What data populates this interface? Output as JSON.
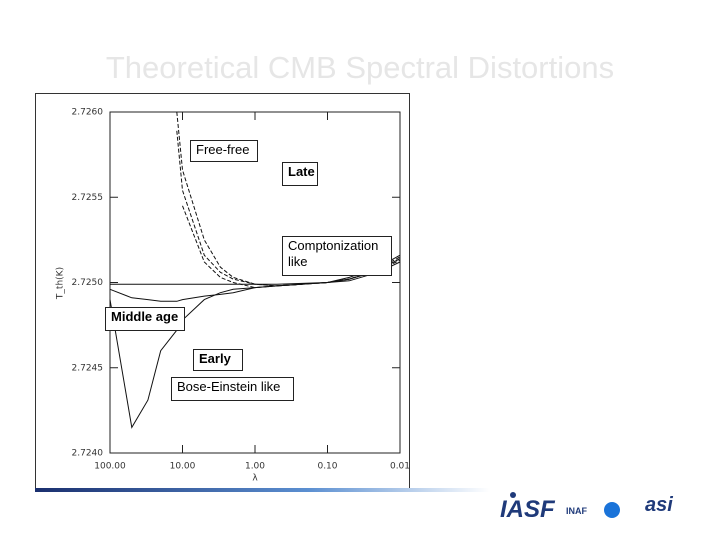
{
  "chart_data": {
    "type": "line",
    "title": "Theoretical CMB Spectral Distortions",
    "x_label": "λ",
    "y_label": "T_th(K)",
    "x_log": true,
    "xlim": [
      100,
      0.01
    ],
    "xticks": [
      {
        "value": 100,
        "label": "100.00"
      },
      {
        "value": 10,
        "label": "10.00"
      },
      {
        "value": 1,
        "label": "1.00"
      },
      {
        "value": 0.1,
        "label": "0.10"
      },
      {
        "value": 0.01,
        "label": "0.01"
      }
    ],
    "ylim": [
      2.724,
      2.726
    ],
    "yticks": [
      {
        "value": 2.724,
        "label": "2.7240"
      },
      {
        "value": 2.7245,
        "label": "2.7245"
      },
      {
        "value": 2.725,
        "label": "2.7250"
      },
      {
        "value": 2.7255,
        "label": "2.7255"
      },
      {
        "value": 2.726,
        "label": "2.7260"
      }
    ],
    "x": [
      100,
      50,
      30,
      20,
      12,
      10,
      5,
      3,
      2,
      1,
      0.5,
      0.1,
      0.05,
      0.02,
      0.01
    ],
    "series": [
      {
        "color": "#111111",
        "dash": false,
        "values": [
          2.7249,
          2.72415,
          2.72431,
          2.7246,
          2.72472,
          2.72478,
          2.7249,
          2.72494,
          2.72496,
          2.72497,
          2.72498,
          2.725,
          2.72502,
          2.72507,
          2.72514
        ]
      },
      {
        "color": "#111111",
        "dash": false,
        "values": [
          2.72496,
          2.72491,
          2.7249,
          2.72489,
          2.72489,
          2.7249,
          2.72492,
          2.72493,
          2.72494,
          2.72497,
          2.72498,
          2.725,
          2.72503,
          2.72509,
          2.72516
        ]
      },
      {
        "color": "#111111",
        "dash": false,
        "values": [
          2.72499,
          2.72499,
          2.72499,
          2.72499,
          2.72499,
          2.72499,
          2.72499,
          2.72499,
          2.72499,
          2.72499,
          2.72499,
          2.725,
          2.72501,
          2.72506,
          2.72512
        ]
      },
      {
        "color": "#111111",
        "dash": true,
        "values": [
          null,
          null,
          null,
          null,
          2.726,
          2.72566,
          2.72525,
          2.72509,
          2.72503,
          2.72499,
          2.72498,
          2.725,
          2.72502,
          2.72508,
          2.72515
        ]
      },
      {
        "color": "#111111",
        "dash": true,
        "values": [
          null,
          null,
          null,
          null,
          2.72589,
          2.72554,
          2.72516,
          2.72506,
          2.72502,
          2.72499,
          2.72498,
          2.725,
          2.72502,
          2.72507,
          2.72513
        ]
      },
      {
        "color": "#111111",
        "dash": true,
        "values": [
          null,
          null,
          null,
          null,
          null,
          2.72545,
          2.72512,
          2.72503,
          2.725,
          2.72497,
          2.72498,
          2.725,
          2.72502,
          2.72507,
          2.72514
        ]
      }
    ],
    "annotations": [
      "Free-free",
      "Late",
      "Comptonization like",
      "Middle age",
      "Early",
      "Bose-Einstein like"
    ]
  },
  "logos": [
    "IASF",
    "INAF",
    "asi"
  ]
}
